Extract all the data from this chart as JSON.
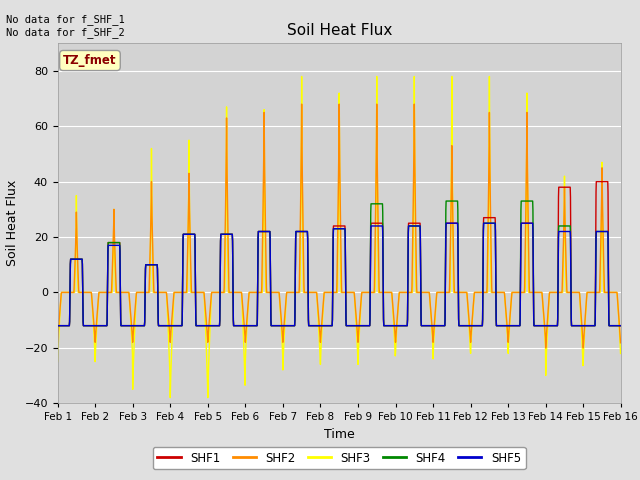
{
  "title": "Soil Heat Flux",
  "ylabel": "Soil Heat Flux",
  "xlabel": "Time",
  "ylim": [
    -40,
    90
  ],
  "yticks": [
    -40,
    -20,
    0,
    20,
    40,
    60,
    80
  ],
  "background_color": "#e0e0e0",
  "plot_bg_color": "#d3d3d3",
  "annotation_text": "No data for f_SHF_1\nNo data for f_SHF_2",
  "box_label": "TZ_fmet",
  "colors": {
    "SHF1": "#cc0000",
    "SHF2": "#ff8c00",
    "SHF3": "#ffff00",
    "SHF4": "#008800",
    "SHF5": "#0000cc"
  },
  "x_tick_labels": [
    "Feb 1",
    "Feb 2",
    "Feb 3",
    "Feb 4",
    "Feb 5",
    "Feb 6",
    "Feb 7",
    "Feb 8",
    "Feb 9",
    "Feb 10",
    "Feb 11",
    "Feb 12",
    "Feb 13",
    "Feb 14",
    "Feb 15",
    "Feb 16"
  ],
  "n_days": 15,
  "pts_per_day": 144
}
